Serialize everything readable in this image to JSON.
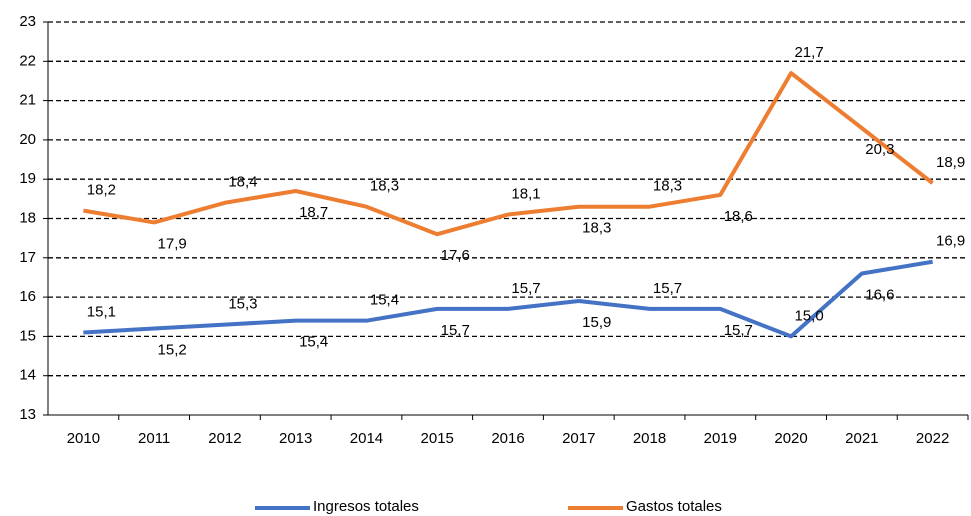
{
  "chart_data": {
    "type": "line",
    "categories": [
      "2010",
      "2011",
      "2012",
      "2013",
      "2014",
      "2015",
      "2016",
      "2017",
      "2018",
      "2019",
      "2020",
      "2021",
      "2022"
    ],
    "series": [
      {
        "name": "Ingresos totales",
        "color": "#4472c4",
        "values": [
          15.1,
          15.2,
          15.3,
          15.4,
          15.4,
          15.7,
          15.7,
          15.9,
          15.7,
          15.7,
          15.0,
          16.6,
          16.9
        ],
        "value_labels": [
          "15,1",
          "15,2",
          "15,3",
          "15,4",
          "15,4",
          "15,7",
          "15,7",
          "15,9",
          "15,7",
          "15,7",
          "15,0",
          "16,6",
          "16,9"
        ]
      },
      {
        "name": "Gastos totales",
        "color": "#ed7d31",
        "values": [
          18.2,
          17.9,
          18.4,
          18.7,
          18.3,
          17.6,
          18.1,
          18.3,
          18.3,
          18.6,
          21.7,
          20.3,
          18.9
        ],
        "value_labels": [
          "18,2",
          "17,9",
          "18,4",
          "18,7",
          "18,3",
          "17,6",
          "18,1",
          "18,3",
          "18,3",
          "18,6",
          "21,7",
          "20,3",
          "18,9"
        ]
      }
    ],
    "ylim": [
      13,
      23
    ],
    "yticks": [
      13,
      14,
      15,
      16,
      17,
      18,
      19,
      20,
      21,
      22,
      23
    ],
    "grid": true,
    "legend": "bottom"
  }
}
